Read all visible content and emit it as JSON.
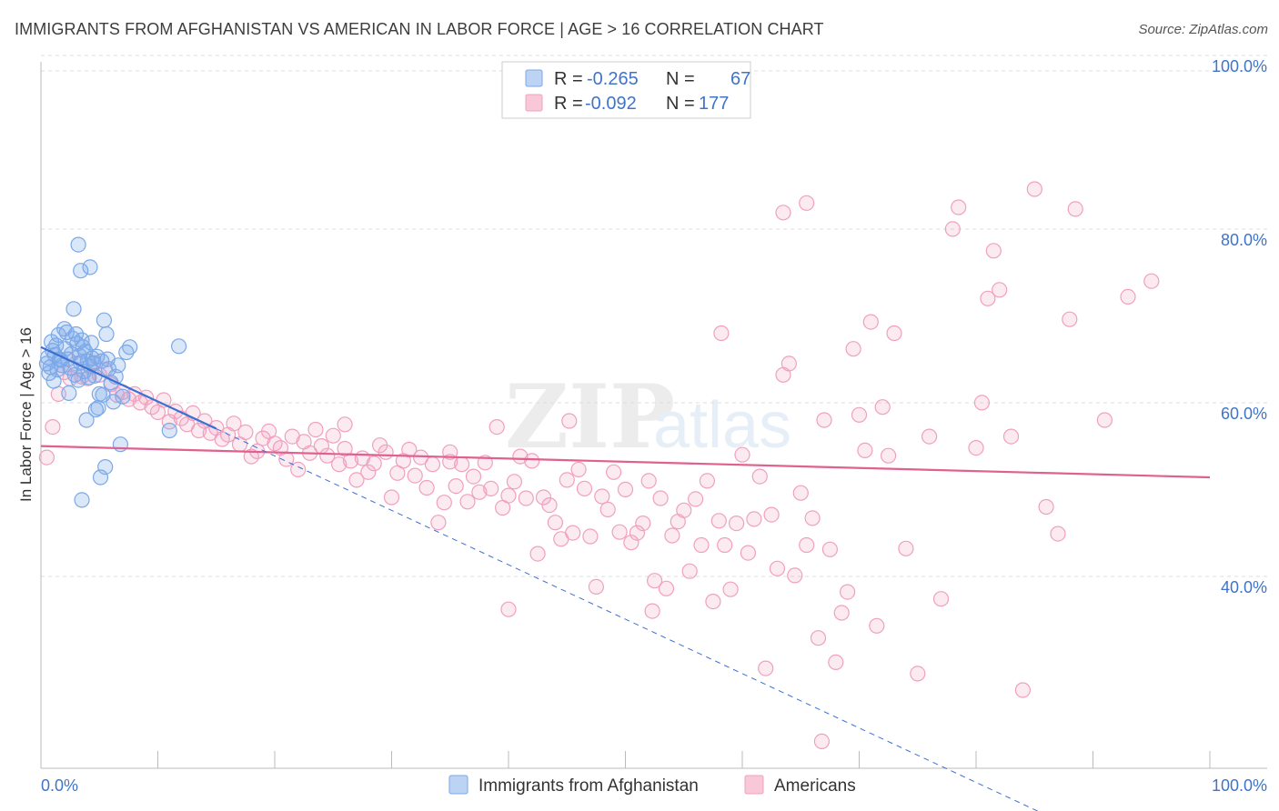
{
  "header": {
    "title": "IMMIGRANTS FROM AFGHANISTAN VS AMERICAN IN LABOR FORCE | AGE > 16 CORRELATION CHART",
    "source": "Source: ZipAtlas.com"
  },
  "watermark": {
    "zip": "ZIP",
    "atlas": "atlas"
  },
  "colors": {
    "blue": "#7aa8e8",
    "blue_line": "#3b6fd1",
    "pink": "#f0a0bd",
    "pink_line": "#e0608f",
    "grid": "#dddddd",
    "tick_text": "#3f74c9"
  },
  "legend": {
    "rows": [
      {
        "r_label": "R = ",
        "r_value": "-0.265",
        "n_label": "N = ",
        "n_value": "67"
      },
      {
        "r_label": "R = ",
        "r_value": "-0.092",
        "n_label": "N = ",
        "n_value": "177"
      }
    ]
  },
  "bottom_legend": {
    "items": [
      "Immigrants from Afghanistan",
      "Americans"
    ]
  },
  "chart_data": {
    "type": "scatter",
    "title": "IMMIGRANTS FROM AFGHANISTAN VS AMERICAN IN LABOR FORCE | AGE > 16 CORRELATION CHART",
    "xlabel": "",
    "ylabel": "In Labor Force | Age > 16",
    "xlim": [
      0,
      100
    ],
    "ylim": [
      20,
      100
    ],
    "x_tick_labels": [
      "0.0%",
      "100.0%"
    ],
    "y_ticks": [
      40,
      60,
      80,
      100
    ],
    "y_tick_labels": [
      "40.0%",
      "60.0%",
      "80.0%",
      "100.0%"
    ],
    "grid": true,
    "series": [
      {
        "name": "Immigrants from Afghanistan",
        "color": "blue",
        "R": -0.265,
        "N": 67,
        "trend": {
          "x0": 0,
          "y0": 68.4,
          "x1": 15,
          "y1": 59.0,
          "dashed_to_x": 86
        },
        "points": [
          [
            0.5,
            66.5
          ],
          [
            0.6,
            67.2
          ],
          [
            0.8,
            66.1
          ],
          [
            1.0,
            68.0
          ],
          [
            1.2,
            67.5
          ],
          [
            1.4,
            65.8
          ],
          [
            1.5,
            69.8
          ],
          [
            1.6,
            67.0
          ],
          [
            1.8,
            66.3
          ],
          [
            2.0,
            70.5
          ],
          [
            2.1,
            68.2
          ],
          [
            2.3,
            67.0
          ],
          [
            2.5,
            66.0
          ],
          [
            2.6,
            67.6
          ],
          [
            2.8,
            72.8
          ],
          [
            2.9,
            65.2
          ],
          [
            3.0,
            69.9
          ],
          [
            3.1,
            68.8
          ],
          [
            3.2,
            64.6
          ],
          [
            3.3,
            67.4
          ],
          [
            3.4,
            66.6
          ],
          [
            3.5,
            69.2
          ],
          [
            3.6,
            68.4
          ],
          [
            3.7,
            65.6
          ],
          [
            3.8,
            67.9
          ],
          [
            4.0,
            66.8
          ],
          [
            4.1,
            64.9
          ],
          [
            4.2,
            66.2
          ],
          [
            4.3,
            68.9
          ],
          [
            4.4,
            67.1
          ],
          [
            4.5,
            66.5
          ],
          [
            4.6,
            65.1
          ],
          [
            4.8,
            67.3
          ],
          [
            5.0,
            63.0
          ],
          [
            5.2,
            66.8
          ],
          [
            5.4,
            71.5
          ],
          [
            5.6,
            69.9
          ],
          [
            5.7,
            67.0
          ],
          [
            5.8,
            65.9
          ],
          [
            6.0,
            64.3
          ],
          [
            6.2,
            62.1
          ],
          [
            6.4,
            65.0
          ],
          [
            6.6,
            66.3
          ],
          [
            7.0,
            62.7
          ],
          [
            7.3,
            67.8
          ],
          [
            7.6,
            68.4
          ],
          [
            4.7,
            61.2
          ],
          [
            4.9,
            61.4
          ],
          [
            3.9,
            60.0
          ],
          [
            5.1,
            53.4
          ],
          [
            5.5,
            54.6
          ],
          [
            3.5,
            50.8
          ],
          [
            6.8,
            57.2
          ],
          [
            11.0,
            58.8
          ],
          [
            11.8,
            68.5
          ],
          [
            3.2,
            80.2
          ],
          [
            4.2,
            77.6
          ],
          [
            3.4,
            77.2
          ],
          [
            1.1,
            64.5
          ],
          [
            2.4,
            63.1
          ],
          [
            5.3,
            62.9
          ],
          [
            0.9,
            69.0
          ],
          [
            1.3,
            68.6
          ],
          [
            2.2,
            70.1
          ],
          [
            2.7,
            69.4
          ],
          [
            0.7,
            65.4
          ],
          [
            1.7,
            66.9
          ]
        ]
      },
      {
        "name": "Americans",
        "color": "pink",
        "R": -0.092,
        "N": 177,
        "trend": {
          "x0": 0,
          "y0": 57.0,
          "x1": 100,
          "y1": 53.4
        },
        "points": [
          [
            0.5,
            55.7
          ],
          [
            1.0,
            59.2
          ],
          [
            1.5,
            63.0
          ],
          [
            2.0,
            65.5
          ],
          [
            2.5,
            64.8
          ],
          [
            3.0,
            66.5
          ],
          [
            3.5,
            65.0
          ],
          [
            4.0,
            64.8
          ],
          [
            4.5,
            66.6
          ],
          [
            5.0,
            65.2
          ],
          [
            5.5,
            65.8
          ],
          [
            6.0,
            64.1
          ],
          [
            6.5,
            62.9
          ],
          [
            7.0,
            63.2
          ],
          [
            7.5,
            62.4
          ],
          [
            8.0,
            63.0
          ],
          [
            8.5,
            62.0
          ],
          [
            9.0,
            62.6
          ],
          [
            9.5,
            61.5
          ],
          [
            10.0,
            60.9
          ],
          [
            10.5,
            62.3
          ],
          [
            11.0,
            59.8
          ],
          [
            11.5,
            61.0
          ],
          [
            12.0,
            60.2
          ],
          [
            12.5,
            59.5
          ],
          [
            13.0,
            60.8
          ],
          [
            13.5,
            58.8
          ],
          [
            14.0,
            59.9
          ],
          [
            14.5,
            58.5
          ],
          [
            15.0,
            59.1
          ],
          [
            15.5,
            57.8
          ],
          [
            16.0,
            58.3
          ],
          [
            16.5,
            59.6
          ],
          [
            17.0,
            57.2
          ],
          [
            17.5,
            58.6
          ],
          [
            18.0,
            55.8
          ],
          [
            18.5,
            56.4
          ],
          [
            19.0,
            57.9
          ],
          [
            19.5,
            58.7
          ],
          [
            20.0,
            57.3
          ],
          [
            20.5,
            56.8
          ],
          [
            21.0,
            55.5
          ],
          [
            21.5,
            58.1
          ],
          [
            22.0,
            54.3
          ],
          [
            22.5,
            57.5
          ],
          [
            23.0,
            56.2
          ],
          [
            23.5,
            58.9
          ],
          [
            24.0,
            57.0
          ],
          [
            24.5,
            55.9
          ],
          [
            25.0,
            58.2
          ],
          [
            25.5,
            54.9
          ],
          [
            26.0,
            56.7
          ],
          [
            26.5,
            55.3
          ],
          [
            27.0,
            53.1
          ],
          [
            27.5,
            55.6
          ],
          [
            28.0,
            54.0
          ],
          [
            28.5,
            55.0
          ],
          [
            29.0,
            57.1
          ],
          [
            29.5,
            56.3
          ],
          [
            30.0,
            51.1
          ],
          [
            30.5,
            53.9
          ],
          [
            31.0,
            55.3
          ],
          [
            31.5,
            56.6
          ],
          [
            32.0,
            53.6
          ],
          [
            32.5,
            55.7
          ],
          [
            33.0,
            52.2
          ],
          [
            33.5,
            54.9
          ],
          [
            34.0,
            48.2
          ],
          [
            34.5,
            50.5
          ],
          [
            35.0,
            56.3
          ],
          [
            35.5,
            52.4
          ],
          [
            36.0,
            54.9
          ],
          [
            36.5,
            50.6
          ],
          [
            37.0,
            53.5
          ],
          [
            37.5,
            51.7
          ],
          [
            38.0,
            55.1
          ],
          [
            38.5,
            52.1
          ],
          [
            39.0,
            59.2
          ],
          [
            39.5,
            49.9
          ],
          [
            40.0,
            51.3
          ],
          [
            40.5,
            52.9
          ],
          [
            41.0,
            55.8
          ],
          [
            41.5,
            51.0
          ],
          [
            42.0,
            55.3
          ],
          [
            42.5,
            44.6
          ],
          [
            43.0,
            51.1
          ],
          [
            43.5,
            50.2
          ],
          [
            44.0,
            48.2
          ],
          [
            44.5,
            46.3
          ],
          [
            45.0,
            53.1
          ],
          [
            45.5,
            47.0
          ],
          [
            46.0,
            54.3
          ],
          [
            46.5,
            52.1
          ],
          [
            47.0,
            46.6
          ],
          [
            47.5,
            40.8
          ],
          [
            48.0,
            51.2
          ],
          [
            48.5,
            49.7
          ],
          [
            49.0,
            54.0
          ],
          [
            49.5,
            47.1
          ],
          [
            50.0,
            52.0
          ],
          [
            50.5,
            45.9
          ],
          [
            51.0,
            47.0
          ],
          [
            51.5,
            48.1
          ],
          [
            52.0,
            53.0
          ],
          [
            52.5,
            41.5
          ],
          [
            53.0,
            51.0
          ],
          [
            53.5,
            40.6
          ],
          [
            54.0,
            46.7
          ],
          [
            54.5,
            48.3
          ],
          [
            55.0,
            49.6
          ],
          [
            55.5,
            42.6
          ],
          [
            56.0,
            50.9
          ],
          [
            56.5,
            45.6
          ],
          [
            57.0,
            53.0
          ],
          [
            57.5,
            39.1
          ],
          [
            58.0,
            48.4
          ],
          [
            58.5,
            45.6
          ],
          [
            59.0,
            40.5
          ],
          [
            59.5,
            48.1
          ],
          [
            60.0,
            56.0
          ],
          [
            60.5,
            44.7
          ],
          [
            61.0,
            48.6
          ],
          [
            61.5,
            53.5
          ],
          [
            62.0,
            31.4
          ],
          [
            62.5,
            49.1
          ],
          [
            63.0,
            42.9
          ],
          [
            63.5,
            65.2
          ],
          [
            64.0,
            66.5
          ],
          [
            64.5,
            42.1
          ],
          [
            65.0,
            51.6
          ],
          [
            65.5,
            45.6
          ],
          [
            66.0,
            48.7
          ],
          [
            66.5,
            34.9
          ],
          [
            67.0,
            60.0
          ],
          [
            67.5,
            45.1
          ],
          [
            68.0,
            32.1
          ],
          [
            68.5,
            37.8
          ],
          [
            69.0,
            40.2
          ],
          [
            69.5,
            68.2
          ],
          [
            70.0,
            60.6
          ],
          [
            70.5,
            56.5
          ],
          [
            71.0,
            71.3
          ],
          [
            71.5,
            36.3
          ],
          [
            72.0,
            61.5
          ],
          [
            72.5,
            55.9
          ],
          [
            73.0,
            70.0
          ],
          [
            74.0,
            45.2
          ],
          [
            75.0,
            30.8
          ],
          [
            76.0,
            58.1
          ],
          [
            77.0,
            39.4
          ],
          [
            78.0,
            82.0
          ],
          [
            78.5,
            84.5
          ],
          [
            80.0,
            56.8
          ],
          [
            80.5,
            62.0
          ],
          [
            81.0,
            74.0
          ],
          [
            81.5,
            79.5
          ],
          [
            82.0,
            75.0
          ],
          [
            83.0,
            58.1
          ],
          [
            84.0,
            28.9
          ],
          [
            85.0,
            86.6
          ],
          [
            86.0,
            50.0
          ],
          [
            87.0,
            46.9
          ],
          [
            88.0,
            71.6
          ],
          [
            88.5,
            84.3
          ],
          [
            91.0,
            60.0
          ],
          [
            93.0,
            74.2
          ],
          [
            95.0,
            76.0
          ],
          [
            66.8,
            23.0
          ],
          [
            63.5,
            83.9
          ],
          [
            65.5,
            85.0
          ],
          [
            58.2,
            70.0
          ],
          [
            52.3,
            38.0
          ],
          [
            40.0,
            38.2
          ],
          [
            26.0,
            59.5
          ],
          [
            35.0,
            55.2
          ],
          [
            45.2,
            59.9
          ]
        ]
      }
    ]
  }
}
